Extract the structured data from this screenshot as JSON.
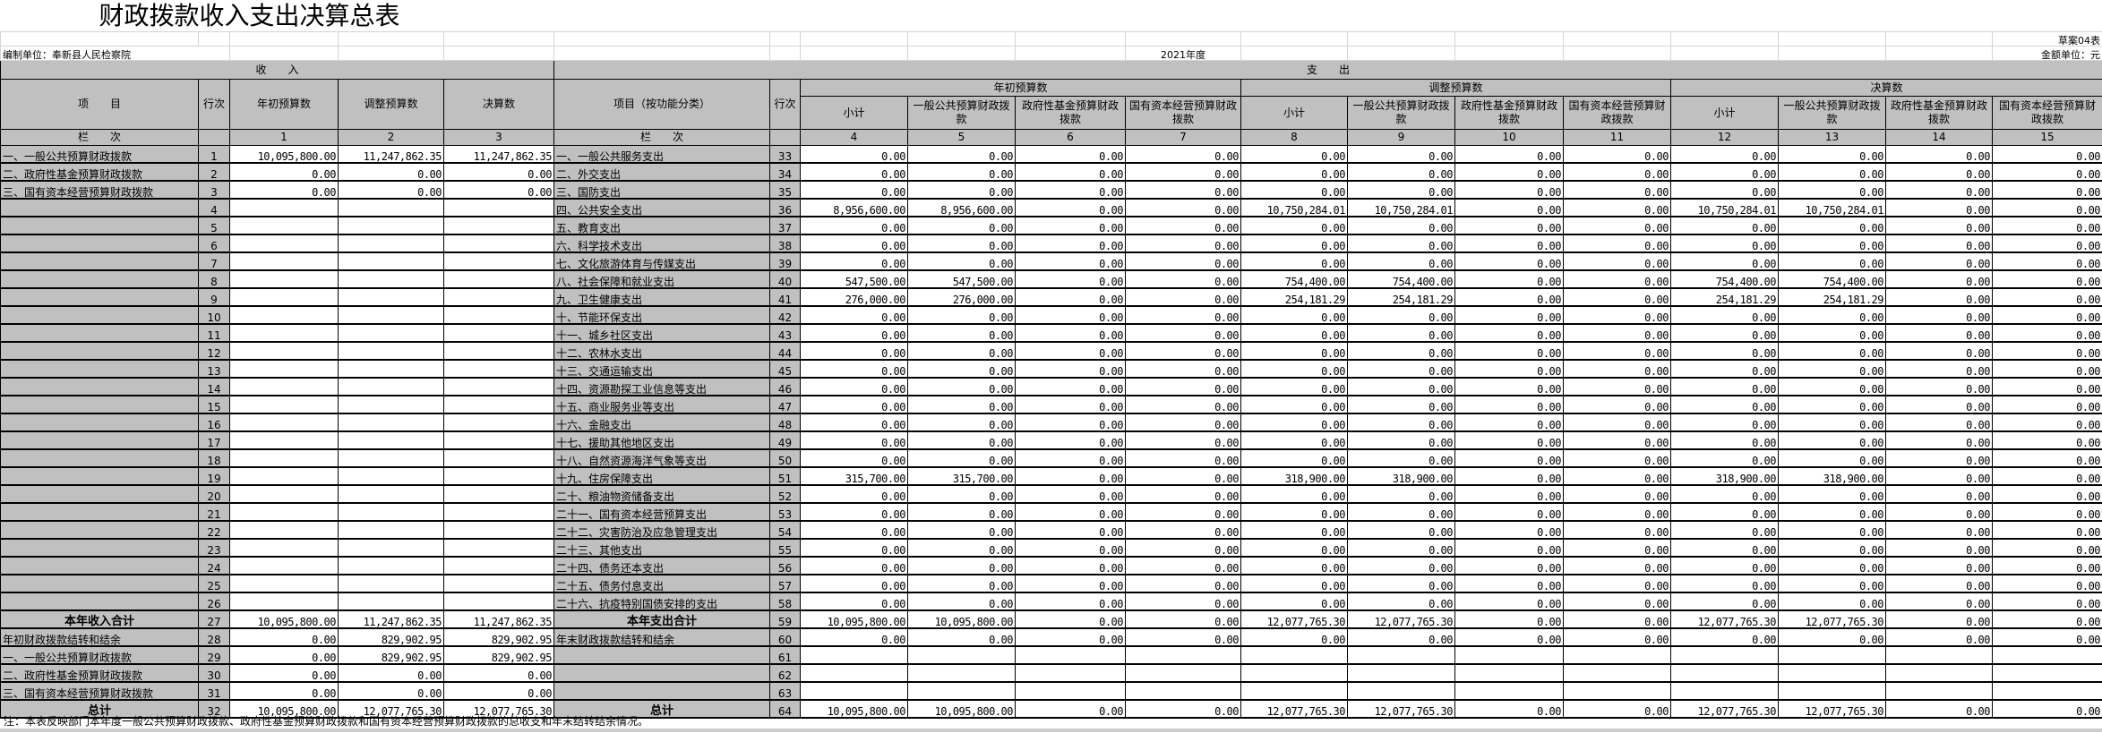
{
  "title": "财政拨款收入支出决算总表",
  "form_no": "草案04表",
  "unit_label": "编制单位：奉新县人民检察院",
  "year": "2021年度",
  "currency_unit": "金额单位：元",
  "income_header": "收　　入",
  "expense_header": "支　　出",
  "headers": {
    "item": "项　　目",
    "line": "行次",
    "budget_initial": "年初预算数",
    "budget_adjusted": "调整预算数",
    "final": "决算数",
    "expense_item": "项目（按功能分类）",
    "subtotal": "小计",
    "general": "一般公共预算财政拨款",
    "fund": "政府性基金预算财政拨款",
    "state_capital": "国有资本经营预算财政拨款",
    "column_index": "栏　　次"
  },
  "column_numbers": [
    "1",
    "2",
    "3",
    "4",
    "5",
    "6",
    "7",
    "8",
    "9",
    "10",
    "11",
    "12",
    "13",
    "14",
    "15"
  ],
  "income_rows": [
    {
      "item": "一、一般公共预算财政拨款",
      "line": "1",
      "values": [
        "10,095,800.00",
        "11,247,862.35",
        "11,247,862.35"
      ]
    },
    {
      "item": "二、政府性基金预算财政拨款",
      "line": "2",
      "values": [
        "0.00",
        "0.00",
        "0.00"
      ]
    },
    {
      "item": "三、国有资本经营预算财政拨款",
      "line": "3",
      "values": [
        "0.00",
        "0.00",
        "0.00"
      ]
    },
    {
      "item": "",
      "line": "4",
      "values": [
        "",
        "",
        ""
      ]
    },
    {
      "item": "",
      "line": "5",
      "values": [
        "",
        "",
        ""
      ]
    },
    {
      "item": "",
      "line": "6",
      "values": [
        "",
        "",
        ""
      ]
    },
    {
      "item": "",
      "line": "7",
      "values": [
        "",
        "",
        ""
      ]
    },
    {
      "item": "",
      "line": "8",
      "values": [
        "",
        "",
        ""
      ]
    },
    {
      "item": "",
      "line": "9",
      "values": [
        "",
        "",
        ""
      ]
    },
    {
      "item": "",
      "line": "10",
      "values": [
        "",
        "",
        ""
      ]
    },
    {
      "item": "",
      "line": "11",
      "values": [
        "",
        "",
        ""
      ]
    },
    {
      "item": "",
      "line": "12",
      "values": [
        "",
        "",
        ""
      ]
    },
    {
      "item": "",
      "line": "13",
      "values": [
        "",
        "",
        ""
      ]
    },
    {
      "item": "",
      "line": "14",
      "values": [
        "",
        "",
        ""
      ]
    },
    {
      "item": "",
      "line": "15",
      "values": [
        "",
        "",
        ""
      ]
    },
    {
      "item": "",
      "line": "16",
      "values": [
        "",
        "",
        ""
      ]
    },
    {
      "item": "",
      "line": "17",
      "values": [
        "",
        "",
        ""
      ]
    },
    {
      "item": "",
      "line": "18",
      "values": [
        "",
        "",
        ""
      ]
    },
    {
      "item": "",
      "line": "19",
      "values": [
        "",
        "",
        ""
      ]
    },
    {
      "item": "",
      "line": "20",
      "values": [
        "",
        "",
        ""
      ]
    },
    {
      "item": "",
      "line": "21",
      "values": [
        "",
        "",
        ""
      ]
    },
    {
      "item": "",
      "line": "22",
      "values": [
        "",
        "",
        ""
      ]
    },
    {
      "item": "",
      "line": "23",
      "values": [
        "",
        "",
        ""
      ]
    },
    {
      "item": "",
      "line": "24",
      "values": [
        "",
        "",
        ""
      ]
    },
    {
      "item": "",
      "line": "25",
      "values": [
        "",
        "",
        ""
      ]
    },
    {
      "item": "",
      "line": "26",
      "values": [
        "",
        "",
        ""
      ]
    },
    {
      "item": "本年收入合计",
      "line": "27",
      "values": [
        "10,095,800.00",
        "11,247,862.35",
        "11,247,862.35"
      ],
      "bold": true
    },
    {
      "item": "年初财政拨款结转和结余",
      "line": "28",
      "values": [
        "0.00",
        "829,902.95",
        "829,902.95"
      ]
    },
    {
      "item": "一、一般公共预算财政拨款",
      "line": "29",
      "values": [
        "0.00",
        "829,902.95",
        "829,902.95"
      ]
    },
    {
      "item": "二、政府性基金预算财政拨款",
      "line": "30",
      "values": [
        "0.00",
        "0.00",
        "0.00"
      ]
    },
    {
      "item": "三、国有资本经营预算财政拨款",
      "line": "31",
      "values": [
        "0.00",
        "0.00",
        "0.00"
      ]
    },
    {
      "item": "总计",
      "line": "32",
      "values": [
        "10,095,800.00",
        "12,077,765.30",
        "12,077,765.30"
      ],
      "bold": true
    }
  ],
  "expense_rows": [
    {
      "item": "一、一般公共服务支出",
      "line": "33",
      "values": [
        "0.00",
        "0.00",
        "0.00",
        "0.00",
        "0.00",
        "0.00",
        "0.00",
        "0.00",
        "0.00",
        "0.00",
        "0.00",
        "0.00"
      ]
    },
    {
      "item": "二、外交支出",
      "line": "34",
      "values": [
        "0.00",
        "0.00",
        "0.00",
        "0.00",
        "0.00",
        "0.00",
        "0.00",
        "0.00",
        "0.00",
        "0.00",
        "0.00",
        "0.00"
      ]
    },
    {
      "item": "三、国防支出",
      "line": "35",
      "values": [
        "0.00",
        "0.00",
        "0.00",
        "0.00",
        "0.00",
        "0.00",
        "0.00",
        "0.00",
        "0.00",
        "0.00",
        "0.00",
        "0.00"
      ]
    },
    {
      "item": "四、公共安全支出",
      "line": "36",
      "values": [
        "8,956,600.00",
        "8,956,600.00",
        "0.00",
        "0.00",
        "10,750,284.01",
        "10,750,284.01",
        "0.00",
        "0.00",
        "10,750,284.01",
        "10,750,284.01",
        "0.00",
        "0.00"
      ]
    },
    {
      "item": "五、教育支出",
      "line": "37",
      "values": [
        "0.00",
        "0.00",
        "0.00",
        "0.00",
        "0.00",
        "0.00",
        "0.00",
        "0.00",
        "0.00",
        "0.00",
        "0.00",
        "0.00"
      ]
    },
    {
      "item": "六、科学技术支出",
      "line": "38",
      "values": [
        "0.00",
        "0.00",
        "0.00",
        "0.00",
        "0.00",
        "0.00",
        "0.00",
        "0.00",
        "0.00",
        "0.00",
        "0.00",
        "0.00"
      ]
    },
    {
      "item": "七、文化旅游体育与传媒支出",
      "line": "39",
      "values": [
        "0.00",
        "0.00",
        "0.00",
        "0.00",
        "0.00",
        "0.00",
        "0.00",
        "0.00",
        "0.00",
        "0.00",
        "0.00",
        "0.00"
      ]
    },
    {
      "item": "八、社会保障和就业支出",
      "line": "40",
      "values": [
        "547,500.00",
        "547,500.00",
        "0.00",
        "0.00",
        "754,400.00",
        "754,400.00",
        "0.00",
        "0.00",
        "754,400.00",
        "754,400.00",
        "0.00",
        "0.00"
      ]
    },
    {
      "item": "九、卫生健康支出",
      "line": "41",
      "values": [
        "276,000.00",
        "276,000.00",
        "0.00",
        "0.00",
        "254,181.29",
        "254,181.29",
        "0.00",
        "0.00",
        "254,181.29",
        "254,181.29",
        "0.00",
        "0.00"
      ]
    },
    {
      "item": "十、节能环保支出",
      "line": "42",
      "values": [
        "0.00",
        "0.00",
        "0.00",
        "0.00",
        "0.00",
        "0.00",
        "0.00",
        "0.00",
        "0.00",
        "0.00",
        "0.00",
        "0.00"
      ]
    },
    {
      "item": "十一、城乡社区支出",
      "line": "43",
      "values": [
        "0.00",
        "0.00",
        "0.00",
        "0.00",
        "0.00",
        "0.00",
        "0.00",
        "0.00",
        "0.00",
        "0.00",
        "0.00",
        "0.00"
      ]
    },
    {
      "item": "十二、农林水支出",
      "line": "44",
      "values": [
        "0.00",
        "0.00",
        "0.00",
        "0.00",
        "0.00",
        "0.00",
        "0.00",
        "0.00",
        "0.00",
        "0.00",
        "0.00",
        "0.00"
      ]
    },
    {
      "item": "十三、交通运输支出",
      "line": "45",
      "values": [
        "0.00",
        "0.00",
        "0.00",
        "0.00",
        "0.00",
        "0.00",
        "0.00",
        "0.00",
        "0.00",
        "0.00",
        "0.00",
        "0.00"
      ]
    },
    {
      "item": "十四、资源勘探工业信息等支出",
      "line": "46",
      "values": [
        "0.00",
        "0.00",
        "0.00",
        "0.00",
        "0.00",
        "0.00",
        "0.00",
        "0.00",
        "0.00",
        "0.00",
        "0.00",
        "0.00"
      ]
    },
    {
      "item": "十五、商业服务业等支出",
      "line": "47",
      "values": [
        "0.00",
        "0.00",
        "0.00",
        "0.00",
        "0.00",
        "0.00",
        "0.00",
        "0.00",
        "0.00",
        "0.00",
        "0.00",
        "0.00"
      ]
    },
    {
      "item": "十六、金融支出",
      "line": "48",
      "values": [
        "0.00",
        "0.00",
        "0.00",
        "0.00",
        "0.00",
        "0.00",
        "0.00",
        "0.00",
        "0.00",
        "0.00",
        "0.00",
        "0.00"
      ]
    },
    {
      "item": "十七、援助其他地区支出",
      "line": "49",
      "values": [
        "0.00",
        "0.00",
        "0.00",
        "0.00",
        "0.00",
        "0.00",
        "0.00",
        "0.00",
        "0.00",
        "0.00",
        "0.00",
        "0.00"
      ]
    },
    {
      "item": "十八、自然资源海洋气象等支出",
      "line": "50",
      "values": [
        "0.00",
        "0.00",
        "0.00",
        "0.00",
        "0.00",
        "0.00",
        "0.00",
        "0.00",
        "0.00",
        "0.00",
        "0.00",
        "0.00"
      ]
    },
    {
      "item": "十九、住房保障支出",
      "line": "51",
      "values": [
        "315,700.00",
        "315,700.00",
        "0.00",
        "0.00",
        "318,900.00",
        "318,900.00",
        "0.00",
        "0.00",
        "318,900.00",
        "318,900.00",
        "0.00",
        "0.00"
      ]
    },
    {
      "item": "二十、粮油物资储备支出",
      "line": "52",
      "values": [
        "0.00",
        "0.00",
        "0.00",
        "0.00",
        "0.00",
        "0.00",
        "0.00",
        "0.00",
        "0.00",
        "0.00",
        "0.00",
        "0.00"
      ]
    },
    {
      "item": "二十一、国有资本经营预算支出",
      "line": "53",
      "values": [
        "0.00",
        "0.00",
        "0.00",
        "0.00",
        "0.00",
        "0.00",
        "0.00",
        "0.00",
        "0.00",
        "0.00",
        "0.00",
        "0.00"
      ]
    },
    {
      "item": "二十二、灾害防治及应急管理支出",
      "line": "54",
      "values": [
        "0.00",
        "0.00",
        "0.00",
        "0.00",
        "0.00",
        "0.00",
        "0.00",
        "0.00",
        "0.00",
        "0.00",
        "0.00",
        "0.00"
      ]
    },
    {
      "item": "二十三、其他支出",
      "line": "55",
      "values": [
        "0.00",
        "0.00",
        "0.00",
        "0.00",
        "0.00",
        "0.00",
        "0.00",
        "0.00",
        "0.00",
        "0.00",
        "0.00",
        "0.00"
      ]
    },
    {
      "item": "二十四、债务还本支出",
      "line": "56",
      "values": [
        "0.00",
        "0.00",
        "0.00",
        "0.00",
        "0.00",
        "0.00",
        "0.00",
        "0.00",
        "0.00",
        "0.00",
        "0.00",
        "0.00"
      ]
    },
    {
      "item": "二十五、债务付息支出",
      "line": "57",
      "values": [
        "0.00",
        "0.00",
        "0.00",
        "0.00",
        "0.00",
        "0.00",
        "0.00",
        "0.00",
        "0.00",
        "0.00",
        "0.00",
        "0.00"
      ]
    },
    {
      "item": "二十六、抗疫特别国债安排的支出",
      "line": "58",
      "values": [
        "0.00",
        "0.00",
        "0.00",
        "0.00",
        "0.00",
        "0.00",
        "0.00",
        "0.00",
        "0.00",
        "0.00",
        "0.00",
        "0.00"
      ]
    },
    {
      "item": "本年支出合计",
      "line": "59",
      "values": [
        "10,095,800.00",
        "10,095,800.00",
        "0.00",
        "0.00",
        "12,077,765.30",
        "12,077,765.30",
        "0.00",
        "0.00",
        "12,077,765.30",
        "12,077,765.30",
        "0.00",
        "0.00"
      ],
      "bold": true
    },
    {
      "item": "年末财政拨款结转和结余",
      "line": "60",
      "values": [
        "0.00",
        "0.00",
        "0.00",
        "0.00",
        "0.00",
        "0.00",
        "0.00",
        "0.00",
        "0.00",
        "0.00",
        "0.00",
        "0.00"
      ]
    },
    {
      "item": "",
      "line": "61",
      "values": [
        "",
        "",
        "",
        "",
        "",
        "",
        "",
        "",
        "",
        "",
        "",
        ""
      ]
    },
    {
      "item": "",
      "line": "62",
      "values": [
        "",
        "",
        "",
        "",
        "",
        "",
        "",
        "",
        "",
        "",
        "",
        ""
      ]
    },
    {
      "item": "",
      "line": "63",
      "values": [
        "",
        "",
        "",
        "",
        "",
        "",
        "",
        "",
        "",
        "",
        "",
        ""
      ]
    },
    {
      "item": "总计",
      "line": "64",
      "values": [
        "10,095,800.00",
        "10,095,800.00",
        "0.00",
        "0.00",
        "12,077,765.30",
        "12,077,765.30",
        "0.00",
        "0.00",
        "12,077,765.30",
        "12,077,765.30",
        "0.00",
        "0.00"
      ],
      "bold": true
    }
  ],
  "note": "注：本表反映部门本年度一般公共预算财政拨款、政府性基金预算财政拨款和国有资本经营预算财政拨款的总收支和年末结转结余情况。",
  "colors": {
    "header_gray": "#c0c0c0",
    "grid": "#d4d4d4",
    "border": "#000000"
  }
}
